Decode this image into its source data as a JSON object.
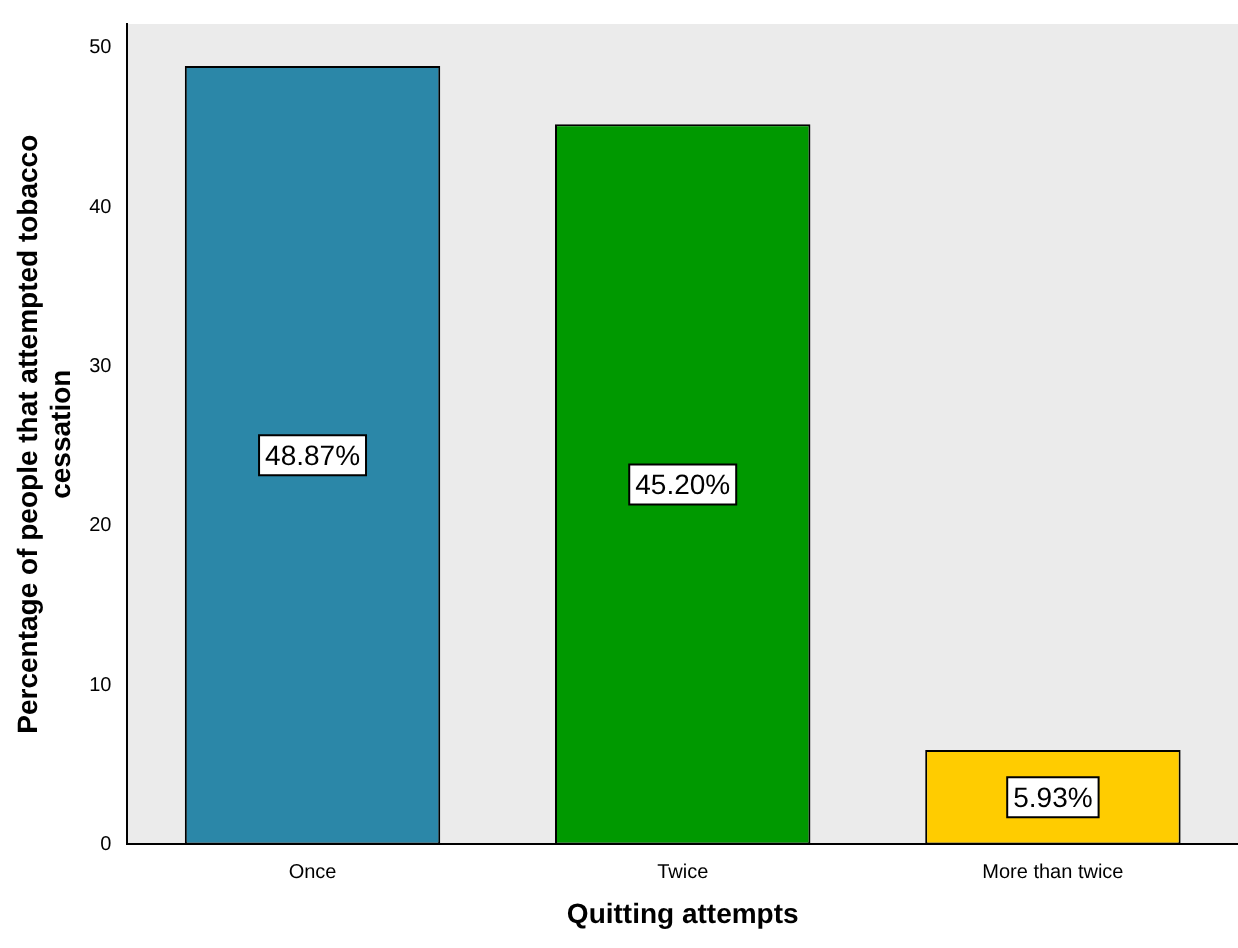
{
  "chart_data": {
    "type": "bar",
    "xlabel": "Quitting attempts",
    "ylabel": "Percentage of people that attempted tobacco cessation",
    "categories": [
      "Once",
      "Twice",
      "More than twice"
    ],
    "values": [
      48.87,
      45.2,
      5.93
    ],
    "colors": [
      "#2b87a8",
      "#009900",
      "#ffcc00"
    ],
    "value_labels": [
      "48.87%",
      "45.20%",
      "5.93%"
    ],
    "ylim": [
      0,
      51.5
    ],
    "yticks": [
      0,
      10,
      20,
      30,
      40,
      50
    ],
    "grid": false,
    "legend": false
  }
}
